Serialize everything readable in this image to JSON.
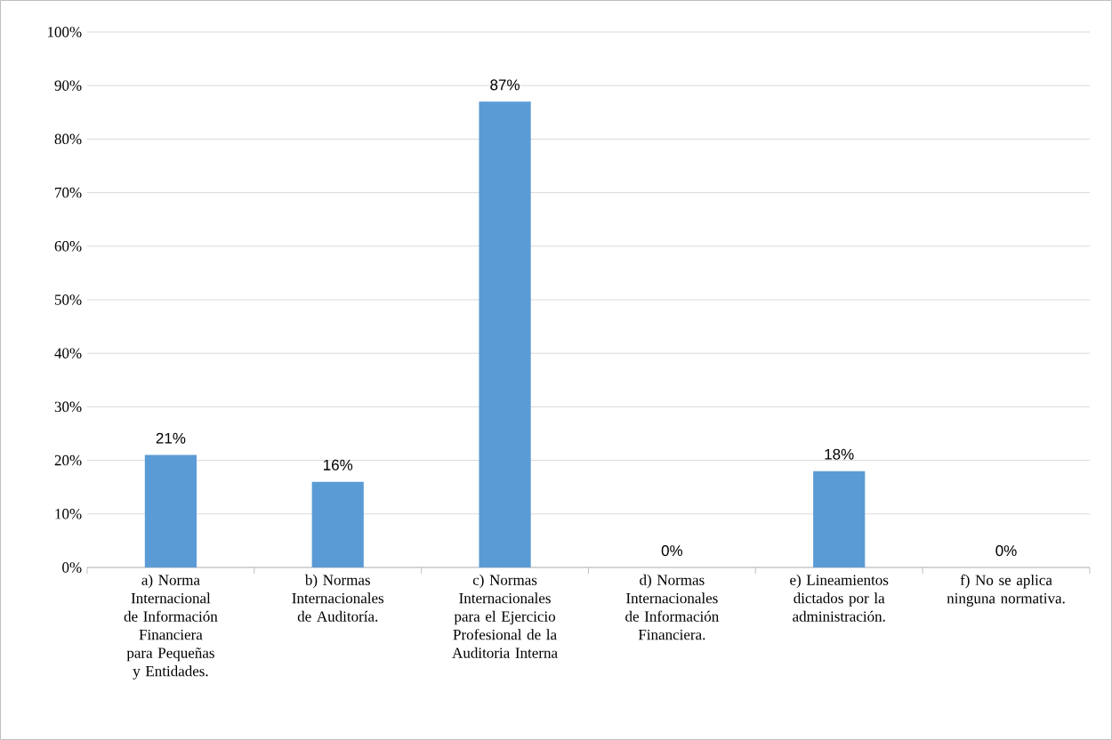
{
  "chart_data": {
    "type": "bar",
    "categories": [
      "a) Norma Internacional de Información Financiera para Pequeñas y Entidades.",
      "b) Normas Internacionales de Auditoría.",
      "c) Normas Internacionales para el Ejercicio Profesional de la Auditoria Interna",
      "d) Normas Internacionales de Información Financiera.",
      "e) Lineamientos dictados por la administración.",
      "f) No se aplica ninguna normativa."
    ],
    "values": [
      21,
      16,
      87,
      0,
      18,
      0
    ],
    "value_labels": [
      "21%",
      "16%",
      "87%",
      "0%",
      "18%",
      "0%"
    ],
    "color": "#5b9bd5",
    "ylim": [
      0,
      100
    ],
    "yticks": [
      {
        "value": 0,
        "label": "0%"
      },
      {
        "value": 10,
        "label": "10%"
      },
      {
        "value": 20,
        "label": "20%"
      },
      {
        "value": 30,
        "label": "30%"
      },
      {
        "value": 40,
        "label": "40%"
      },
      {
        "value": 50,
        "label": "50%"
      },
      {
        "value": 60,
        "label": "60%"
      },
      {
        "value": 70,
        "label": "70%"
      },
      {
        "value": 80,
        "label": "80%"
      },
      {
        "value": 90,
        "label": "90%"
      },
      {
        "value": 100,
        "label": "100%"
      }
    ],
    "grid": "y"
  }
}
